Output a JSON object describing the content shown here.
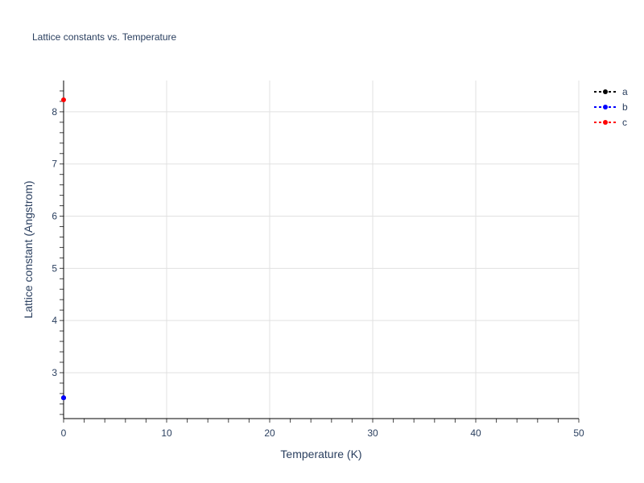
{
  "chart_data": {
    "type": "scatter",
    "mode": "lines+markers",
    "line_dash": "dot",
    "title": "Lattice constants vs. Temperature",
    "xlabel": "Temperature (K)",
    "ylabel": "Lattice constant (Angstrom)",
    "xlim": [
      0,
      50
    ],
    "ylim": [
      2.12,
      8.6
    ],
    "xticks": [
      0,
      10,
      20,
      30,
      40,
      50
    ],
    "yticks": [
      3,
      4,
      5,
      6,
      7,
      8
    ],
    "grid": true,
    "legend_position": "top-right",
    "series": [
      {
        "name": "a",
        "color": "#000000",
        "x": [
          0
        ],
        "y": [
          2.52
        ]
      },
      {
        "name": "b",
        "color": "#0000ff",
        "x": [
          0
        ],
        "y": [
          2.52
        ]
      },
      {
        "name": "c",
        "color": "#ff0000",
        "x": [
          0
        ],
        "y": [
          8.23
        ]
      }
    ]
  }
}
